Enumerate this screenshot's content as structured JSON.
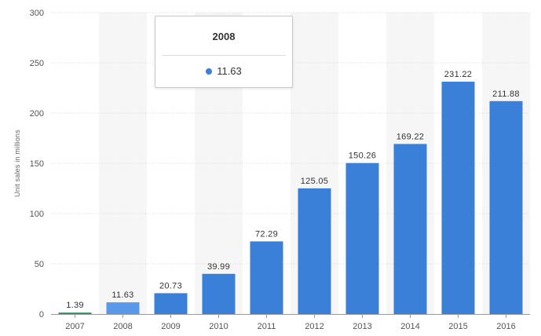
{
  "chart_data": {
    "type": "bar",
    "ylabel": "Unit sales in millions",
    "ylim": [
      0,
      300
    ],
    "yticks": [
      0,
      50,
      100,
      150,
      200,
      250,
      300
    ],
    "grid": true,
    "categories": [
      "2007",
      "2008",
      "2009",
      "2010",
      "2011",
      "2012",
      "2013",
      "2014",
      "2015",
      "2016"
    ],
    "values": [
      1.39,
      11.63,
      20.73,
      39.99,
      72.29,
      125.05,
      150.26,
      169.22,
      231.22,
      211.88
    ],
    "value_labels": [
      "1.39",
      "11.63",
      "20.73",
      "39.99",
      "72.29",
      "125.05",
      "150.26",
      "169.22",
      "231.22",
      "211.88"
    ],
    "highlighted_category": "2008"
  },
  "tooltip": {
    "title": "2008",
    "value": "11.63"
  },
  "colors": {
    "bar": "#3a7fd8",
    "bar_highlight": "#5a98ea",
    "band": "#f6f6f6",
    "grid": "#d6d6d6",
    "first_bar": "#2f8a5c"
  }
}
